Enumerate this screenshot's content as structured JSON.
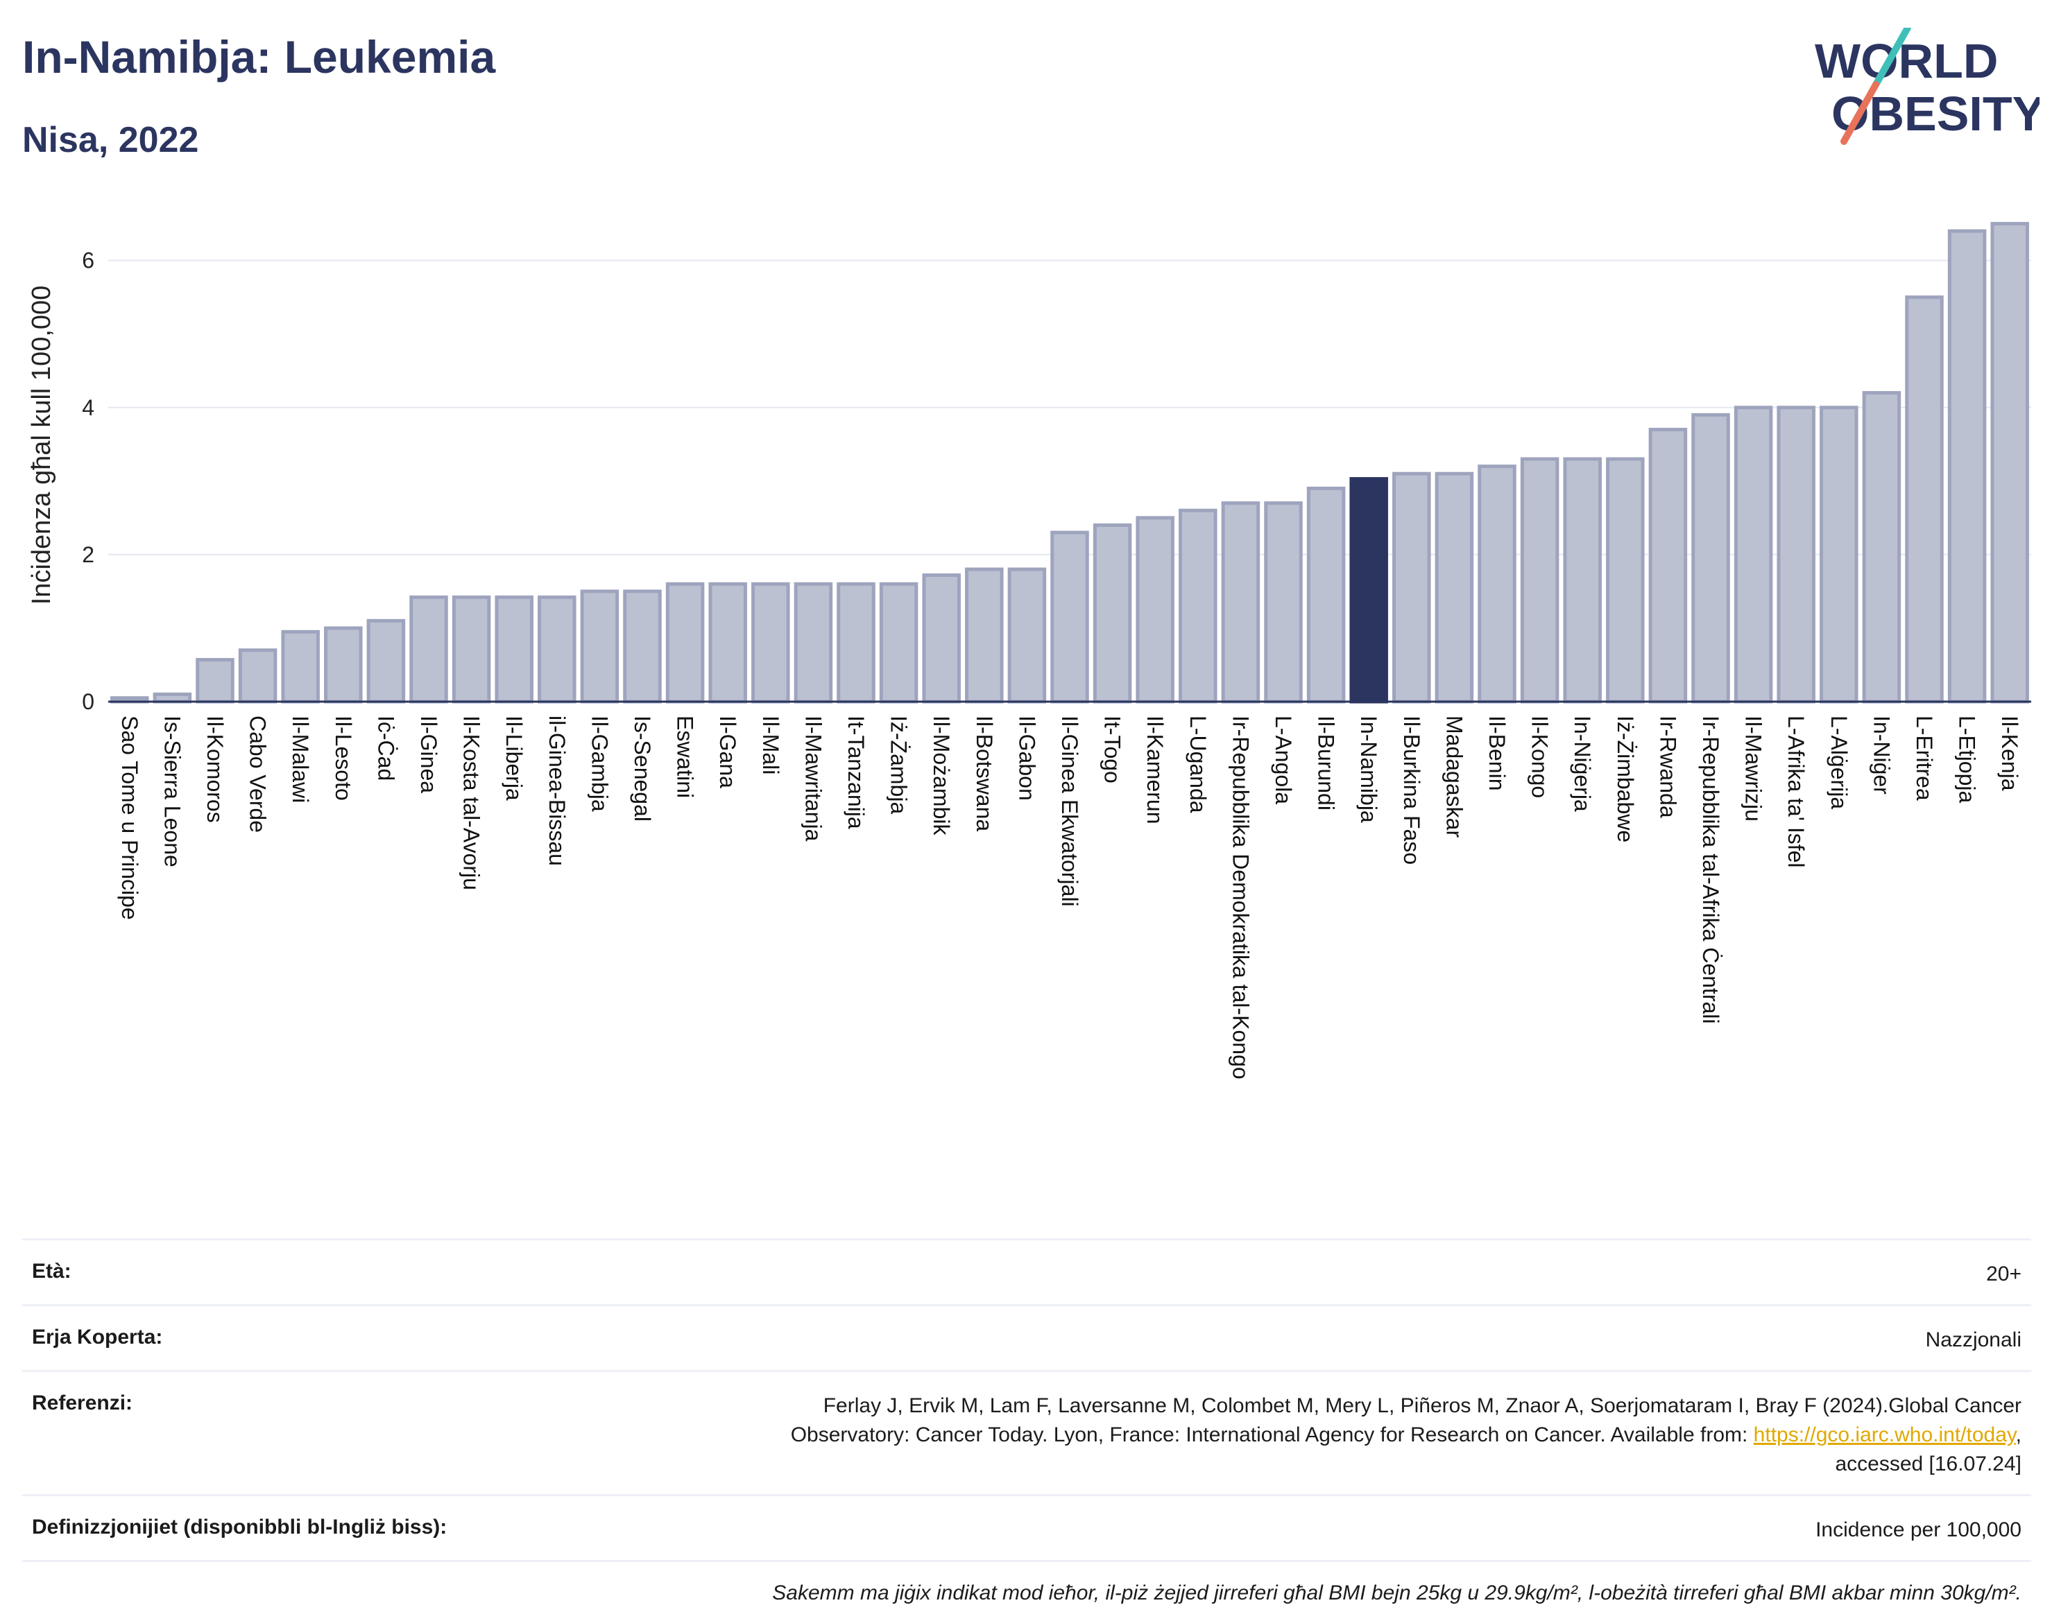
{
  "header": {
    "title": "In-Namibja: Leukemia",
    "subtitle": "Nisa, 2022"
  },
  "logo": {
    "line1": "WORLD",
    "line2": "OBESITY",
    "colors": {
      "text": "#2b3560",
      "slash_teal": "#3fbfb8",
      "slash_red": "#e8735a"
    }
  },
  "colors": {
    "bar_fill": "#bcc1d2",
    "bar_stroke": "#9ea4bd",
    "highlight_fill": "#2b3560",
    "grid": "#e6e8ef",
    "axis": "#2b3560"
  },
  "chart_data": {
    "type": "bar",
    "ylabel": "Inċidenza għal kull 100,000",
    "ylim": [
      0,
      6.6
    ],
    "yticks": [
      0,
      2,
      4,
      6
    ],
    "grid": "horizontal",
    "highlight": "In-Namibja",
    "categories": [
      "Sao Tome u Principe",
      "Is-Sierra Leone",
      "Il-Komoros",
      "Cabo Verde",
      "Il-Malawi",
      "Il-Lesoto",
      "Iċ-Ċad",
      "Il-Ginea",
      "Il-Kosta tal-Avorju",
      "Il-Liberja",
      "il-Ginea-Bissau",
      "Il-Gambja",
      "Is-Senegal",
      "Eswatini",
      "Il-Gana",
      "Il-Mali",
      "Il-Mawritanja",
      "It-Tanzanija",
      "Iż-Żambja",
      "Il-Możambik",
      "Il-Botswana",
      "Il-Gabon",
      "Il-Ginea Ekwatorjali",
      "It-Togo",
      "Il-Kamerun",
      "L-Uganda",
      "Ir-Repubblika Demokratika tal-Kongo",
      "L-Angola",
      "Il-Burundi",
      "In-Namibja",
      "Il-Burkina Faso",
      "Madagaskar",
      "Il-Benin",
      "Il-Kongo",
      "In-Niġerja",
      "Iż-Żimbabwe",
      "Ir-Rwanda",
      "Ir-Repubblika tal-Afrika Ċentrali",
      "Il-Mawrizju",
      "L-Afrika ta' Isfel",
      "L-Alġerija",
      "In-Niġer",
      "L-Eritrea",
      "L-Etjopja",
      "Il-Kenja"
    ],
    "values": [
      0.05,
      0.1,
      0.57,
      0.7,
      0.95,
      1.0,
      1.1,
      1.42,
      1.42,
      1.42,
      1.42,
      1.5,
      1.5,
      1.6,
      1.6,
      1.6,
      1.6,
      1.6,
      1.6,
      1.72,
      1.8,
      1.8,
      2.3,
      2.4,
      2.5,
      2.6,
      2.7,
      2.7,
      2.9,
      3.03,
      3.1,
      3.1,
      3.2,
      3.3,
      3.3,
      3.3,
      3.7,
      3.9,
      4.0,
      4.0,
      4.0,
      4.2,
      5.5,
      6.4,
      6.5
    ]
  },
  "meta": {
    "age_label": "Età:",
    "age_value": "20+",
    "area_label": "Erja Koperta:",
    "area_value": "Nazzjonali",
    "ref_label": "Referenzi:",
    "ref_line1": "Ferlay J, Ervik M, Lam F, Laversanne M, Colombet M, Mery L, Piñeros M, Znaor A, Soerjomataram I, Bray F (2024).Global Cancer",
    "ref_line2": "Observatory: Cancer Today. Lyon, France: International Agency for Research on Cancer. Available from: ",
    "ref_link": "https://gco.iarc.who.int/today",
    "ref_line2_end": ",",
    "ref_line3": "accessed [16.07.24]",
    "def_label": "Definizzjonijiet (disponibbli bl-Ingliż biss):",
    "def_value": "Incidence per 100,000",
    "note": "Sakemm ma jiġix indikat mod ieħor, il-piż żejjed jirreferi għal BMI bejn 25kg u 29.9kg/m², l-obeżità tirreferi għal BMI akbar minn 30kg/m²."
  }
}
